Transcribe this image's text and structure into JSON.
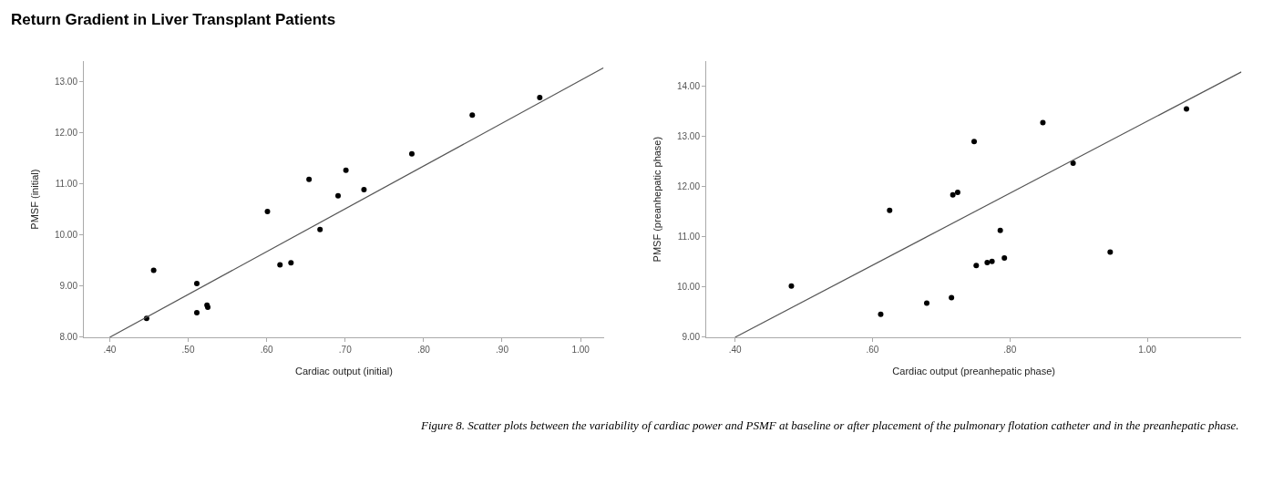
{
  "chart_data": [
    {
      "type": "scatter",
      "title": "Return Gradient in Liver Transplant Patients",
      "xlabel": "Cardiac output (initial)",
      "ylabel": "PMSF (initial)",
      "xlim": [
        0.367,
        1.03
      ],
      "ylim": [
        8,
        13.4
      ],
      "xticks": [
        {
          "value": 0.4,
          "label": ".40"
        },
        {
          "value": 0.5,
          "label": ".50"
        },
        {
          "value": 0.6,
          "label": ".60"
        },
        {
          "value": 0.7,
          "label": ".70"
        },
        {
          "value": 0.8,
          "label": ".80"
        },
        {
          "value": 0.9,
          "label": ".90"
        },
        {
          "value": 1.0,
          "label": "1.00"
        }
      ],
      "yticks": [
        {
          "value": 8,
          "label": "8.00"
        },
        {
          "value": 9,
          "label": "9.00"
        },
        {
          "value": 10,
          "label": "10.00"
        },
        {
          "value": 11,
          "label": "11.00"
        },
        {
          "value": 12,
          "label": "12.00"
        },
        {
          "value": 13,
          "label": "13.00"
        }
      ],
      "series": [
        {
          "marker": "circle",
          "color": "#000000",
          "x": [
            0.447,
            0.456,
            0.511,
            0.511,
            0.524,
            0.525,
            0.601,
            0.617,
            0.631,
            0.654,
            0.668,
            0.691,
            0.701,
            0.724,
            0.785,
            0.862,
            0.948
          ],
          "values": [
            8.37,
            9.31,
            9.05,
            8.48,
            8.63,
            8.59,
            10.46,
            9.42,
            9.46,
            11.09,
            10.11,
            10.77,
            11.27,
            10.89,
            11.59,
            12.35,
            12.69
          ]
        },
        {
          "type": "line",
          "color": "#555555",
          "x": [
            0.4,
            1.029
          ],
          "values": [
            8.0,
            13.27
          ]
        }
      ]
    },
    {
      "type": "scatter",
      "xlabel": "Cardiac output (preanhepatic phase)",
      "ylabel": "PMSF (preanhepatic phase)",
      "xlim": [
        0.358,
        1.137
      ],
      "ylim": [
        9,
        14.5
      ],
      "xticks": [
        {
          "value": 0.4,
          "label": ".40"
        },
        {
          "value": 0.6,
          "label": ".60"
        },
        {
          "value": 0.8,
          "label": ".80"
        },
        {
          "value": 1.0,
          "label": "1.00"
        }
      ],
      "yticks": [
        {
          "value": 9,
          "label": "9.00"
        },
        {
          "value": 10,
          "label": "10.00"
        },
        {
          "value": 11,
          "label": "11.00"
        },
        {
          "value": 12,
          "label": "12.00"
        },
        {
          "value": 13,
          "label": "13.00"
        },
        {
          "value": 14,
          "label": "14.00"
        }
      ],
      "annotations": [
        "Figure 8. Scatter plots between the variability of cardiac power and PSMF at baseline or after placement of the pulmonary flotation catheter and in the preanhepatic phase."
      ],
      "series": [
        {
          "marker": "circle",
          "color": "#000000",
          "x": [
            0.482,
            0.612,
            0.625,
            0.679,
            0.715,
            0.717,
            0.724,
            0.748,
            0.751,
            0.767,
            0.774,
            0.786,
            0.792,
            0.848,
            0.892,
            0.946,
            1.057
          ],
          "values": [
            10.02,
            9.46,
            11.53,
            9.68,
            9.79,
            11.84,
            11.89,
            12.9,
            10.43,
            10.49,
            10.51,
            11.13,
            10.58,
            13.28,
            12.47,
            10.7,
            13.55
          ]
        },
        {
          "type": "line",
          "color": "#555555",
          "x": [
            0.4,
            1.137
          ],
          "values": [
            9.0,
            14.29
          ]
        }
      ]
    }
  ]
}
